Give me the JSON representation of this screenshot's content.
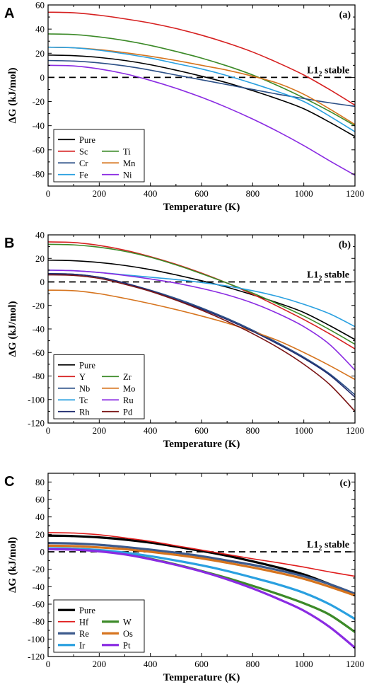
{
  "chart_data": [
    {
      "type": "line",
      "panel_letter": "A",
      "tag": "(a)",
      "xlabel": "Temperature (K)",
      "ylabel": "ΔG (kJ/mol)",
      "xlim": [
        0,
        1200
      ],
      "ylim": [
        -90,
        60
      ],
      "xticks": [
        0,
        200,
        400,
        600,
        800,
        1000,
        1200
      ],
      "yticks": [
        -80,
        -60,
        -40,
        -20,
        0,
        20,
        40,
        60
      ],
      "reference": {
        "y": 0,
        "style": "dashed",
        "label": "L1",
        "label_sub": "2",
        "label_tail": " stable"
      },
      "legend": {
        "position": "bottom-left",
        "columns": 2
      },
      "series": [
        {
          "name": "Pure",
          "color": "#000000",
          "lw": 1.6,
          "x": [
            0,
            100,
            200,
            300,
            400,
            500,
            600,
            700,
            800,
            900,
            1000,
            1100,
            1200
          ],
          "y": [
            18.5,
            18,
            16.5,
            14,
            10.5,
            6,
            1,
            -4.5,
            -11,
            -18,
            -26,
            -37,
            -49
          ]
        },
        {
          "name": "Sc",
          "color": "#d62020",
          "lw": 1.6,
          "x": [
            0,
            100,
            200,
            300,
            400,
            500,
            600,
            700,
            800,
            900,
            1000,
            1100,
            1200
          ],
          "y": [
            54,
            53.5,
            51.5,
            48.5,
            45,
            40.5,
            35,
            28.5,
            21,
            12,
            2,
            -10,
            -23
          ]
        },
        {
          "name": "Ti",
          "color": "#3c8a28",
          "lw": 1.6,
          "x": [
            0,
            100,
            200,
            300,
            400,
            500,
            600,
            700,
            800,
            900,
            1000,
            1100,
            1200
          ],
          "y": [
            36,
            35.5,
            33.5,
            30.5,
            26.5,
            21.5,
            16,
            9.5,
            2,
            -7,
            -17,
            -28,
            -40
          ]
        },
        {
          "name": "Cr",
          "color": "#2b4f86",
          "lw": 1.6,
          "x": [
            0,
            100,
            200,
            300,
            400,
            500,
            600,
            700,
            800,
            900,
            1000,
            1100,
            1200
          ],
          "y": [
            14,
            13.5,
            12,
            9.5,
            6,
            2,
            -2,
            -6,
            -10,
            -14,
            -17.5,
            -21,
            -24
          ]
        },
        {
          "name": "Mn",
          "color": "#d6741e",
          "lw": 1.6,
          "x": [
            0,
            100,
            200,
            300,
            400,
            500,
            600,
            700,
            800,
            900,
            1000,
            1100,
            1200
          ],
          "y": [
            25,
            24.5,
            23,
            20.5,
            17.5,
            14,
            10,
            6,
            1,
            -5,
            -14,
            -26,
            -39
          ]
        },
        {
          "name": "Fe",
          "color": "#2aa0e0",
          "lw": 1.6,
          "x": [
            0,
            100,
            200,
            300,
            400,
            500,
            600,
            700,
            800,
            900,
            1000,
            1100,
            1200
          ],
          "y": [
            25,
            24.5,
            22.5,
            19.5,
            16,
            11.5,
            7,
            1.5,
            -5,
            -12,
            -20,
            -32,
            -45
          ]
        },
        {
          "name": "Ni",
          "color": "#8a2be2",
          "lw": 1.6,
          "x": [
            0,
            100,
            200,
            300,
            400,
            500,
            600,
            700,
            800,
            900,
            1000,
            1100,
            1200
          ],
          "y": [
            10,
            9.5,
            7,
            3,
            -2.5,
            -9,
            -16.5,
            -25,
            -34.5,
            -45,
            -56.5,
            -69,
            -81
          ]
        }
      ]
    },
    {
      "type": "line",
      "panel_letter": "B",
      "tag": "(b)",
      "xlabel": "Temperature (K)",
      "ylabel": "ΔG (kJ/mol)",
      "xlim": [
        0,
        1200
      ],
      "ylim": [
        -120,
        40
      ],
      "xticks": [
        0,
        200,
        400,
        600,
        800,
        1000,
        1200
      ],
      "yticks": [
        -120,
        -100,
        -80,
        -60,
        -40,
        -20,
        0,
        20,
        40
      ],
      "reference": {
        "y": 0,
        "style": "dashed",
        "label": "L1",
        "label_sub": "2",
        "label_tail": " stable"
      },
      "legend": {
        "position": "bottom-left",
        "columns": 2
      },
      "series": [
        {
          "name": "Pure",
          "color": "#000000",
          "lw": 1.6,
          "x": [
            0,
            100,
            200,
            300,
            400,
            500,
            600,
            700,
            800,
            900,
            1000,
            1100,
            1200
          ],
          "y": [
            18.5,
            18,
            16.5,
            14,
            10.5,
            6,
            1,
            -4.5,
            -11,
            -18,
            -26,
            -37,
            -49
          ]
        },
        {
          "name": "Y",
          "color": "#d62020",
          "lw": 1.6,
          "x": [
            0,
            100,
            200,
            300,
            400,
            500,
            600,
            700,
            800,
            900,
            1000,
            1100,
            1200
          ],
          "y": [
            34,
            33.5,
            31,
            27,
            21.5,
            15,
            7.5,
            -1,
            -10.5,
            -21,
            -32,
            -44,
            -57
          ]
        },
        {
          "name": "Zr",
          "color": "#3c8a28",
          "lw": 1.6,
          "x": [
            0,
            100,
            200,
            300,
            400,
            500,
            600,
            700,
            800,
            900,
            1000,
            1100,
            1200
          ],
          "y": [
            32,
            31.5,
            29.5,
            26,
            21,
            14.5,
            7,
            -1,
            -9.5,
            -19,
            -29,
            -40.5,
            -53
          ]
        },
        {
          "name": "Nb",
          "color": "#2b4f86",
          "lw": 1.6,
          "x": [
            0,
            100,
            200,
            300,
            400,
            500,
            600,
            700,
            800,
            900,
            1000,
            1100,
            1200
          ],
          "y": [
            7,
            6.5,
            4,
            -1,
            -7,
            -14,
            -22,
            -31,
            -41,
            -52,
            -64,
            -78,
            -96
          ]
        },
        {
          "name": "Mo",
          "color": "#d6741e",
          "lw": 1.6,
          "x": [
            0,
            100,
            200,
            300,
            400,
            500,
            600,
            700,
            800,
            900,
            1000,
            1100,
            1200
          ],
          "y": [
            -7,
            -7.5,
            -10,
            -14,
            -18.5,
            -23.5,
            -29,
            -35,
            -42,
            -50,
            -60,
            -71,
            -83
          ]
        },
        {
          "name": "Tc",
          "color": "#2aa0e0",
          "lw": 1.6,
          "x": [
            0,
            100,
            200,
            300,
            400,
            500,
            600,
            700,
            800,
            900,
            1000,
            1100,
            1200
          ],
          "y": [
            10,
            9.5,
            8,
            6,
            4,
            2,
            -0.5,
            -3.5,
            -7.5,
            -12.5,
            -19,
            -27,
            -38
          ]
        },
        {
          "name": "Ru",
          "color": "#8a2be2",
          "lw": 1.6,
          "x": [
            0,
            100,
            200,
            300,
            400,
            500,
            600,
            700,
            800,
            900,
            1000,
            1100,
            1200
          ],
          "y": [
            10,
            9.5,
            8,
            5.5,
            2.5,
            -1,
            -5.5,
            -11,
            -18,
            -27,
            -38,
            -53,
            -75
          ]
        },
        {
          "name": "Rh",
          "color": "#1e2a6e",
          "lw": 1.6,
          "x": [
            0,
            100,
            200,
            300,
            400,
            500,
            600,
            700,
            800,
            900,
            1000,
            1100,
            1200
          ],
          "y": [
            7,
            6.5,
            4,
            -1,
            -7.5,
            -15,
            -23,
            -32,
            -42,
            -53,
            -65,
            -79,
            -98
          ]
        },
        {
          "name": "Pd",
          "color": "#7a1414",
          "lw": 1.6,
          "x": [
            0,
            100,
            200,
            300,
            400,
            500,
            600,
            700,
            800,
            900,
            1000,
            1100,
            1200
          ],
          "y": [
            6,
            5.5,
            3,
            -2,
            -8,
            -15.5,
            -24,
            -33.5,
            -44,
            -56,
            -70,
            -87,
            -110
          ]
        }
      ]
    },
    {
      "type": "line",
      "panel_letter": "C",
      "tag": "(c)",
      "xlabel": "Temperature (K)",
      "ylabel": "ΔG (kJ/mol)",
      "xlim": [
        0,
        1200
      ],
      "ylim": [
        -120,
        90
      ],
      "xticks": [
        0,
        200,
        400,
        600,
        800,
        1000,
        1200
      ],
      "yticks": [
        -120,
        -100,
        -80,
        -60,
        -40,
        -20,
        0,
        20,
        40,
        60,
        80
      ],
      "reference": {
        "y": 0,
        "style": "dashed",
        "label": "L1",
        "label_sub": "2",
        "label_tail": " stable"
      },
      "legend": {
        "position": "bottom-left",
        "columns": 2
      },
      "series": [
        {
          "name": "Pure",
          "color": "#000000",
          "lw": 3.2,
          "x": [
            0,
            100,
            200,
            300,
            400,
            500,
            600,
            700,
            800,
            900,
            1000,
            1100,
            1200
          ],
          "y": [
            18.5,
            18,
            16.5,
            14,
            10.5,
            6,
            1,
            -4.5,
            -11,
            -18,
            -26,
            -37,
            -49
          ]
        },
        {
          "name": "Hf",
          "color": "#e01c1c",
          "lw": 1.6,
          "x": [
            0,
            100,
            200,
            300,
            400,
            500,
            600,
            700,
            800,
            900,
            1000,
            1100,
            1200
          ],
          "y": [
            22,
            21.5,
            19.5,
            16,
            12,
            7,
            2,
            -3,
            -8,
            -12.5,
            -17.5,
            -23,
            -28
          ]
        },
        {
          "name": "W",
          "color": "#3c8a28",
          "lw": 3.2,
          "x": [
            0,
            100,
            200,
            300,
            400,
            500,
            600,
            700,
            800,
            900,
            1000,
            1100,
            1200
          ],
          "y": [
            4,
            3.5,
            1.5,
            -2.5,
            -8,
            -14.5,
            -22,
            -30,
            -39,
            -48.5,
            -59,
            -72,
            -92
          ]
        },
        {
          "name": "Re",
          "color": "#3c5a8c",
          "lw": 3.2,
          "x": [
            0,
            100,
            200,
            300,
            400,
            500,
            600,
            700,
            800,
            900,
            1000,
            1100,
            1200
          ],
          "y": [
            10,
            9.5,
            8,
            5.5,
            2.5,
            -1,
            -5,
            -10,
            -15,
            -21,
            -28,
            -37,
            -48
          ]
        },
        {
          "name": "Os",
          "color": "#d6741e",
          "lw": 3.2,
          "x": [
            0,
            100,
            200,
            300,
            400,
            500,
            600,
            700,
            800,
            900,
            1000,
            1100,
            1200
          ],
          "y": [
            7,
            6.5,
            5,
            3,
            0,
            -3.5,
            -7.5,
            -12.5,
            -18,
            -24,
            -31,
            -40,
            -50
          ]
        },
        {
          "name": "Ir",
          "color": "#2aa0e0",
          "lw": 3.2,
          "x": [
            0,
            100,
            200,
            300,
            400,
            500,
            600,
            700,
            800,
            900,
            1000,
            1100,
            1200
          ],
          "y": [
            4,
            3.5,
            2,
            -1,
            -5,
            -10,
            -15.5,
            -22,
            -29.5,
            -37.5,
            -47,
            -60,
            -77
          ]
        },
        {
          "name": "Pt",
          "color": "#8a2be2",
          "lw": 3.2,
          "x": [
            0,
            100,
            200,
            300,
            400,
            500,
            600,
            700,
            800,
            900,
            1000,
            1100,
            1200
          ],
          "y": [
            3,
            2.5,
            0.5,
            -3,
            -8.5,
            -15,
            -22.5,
            -31.5,
            -42,
            -54,
            -67.5,
            -86,
            -110
          ]
        }
      ]
    }
  ]
}
